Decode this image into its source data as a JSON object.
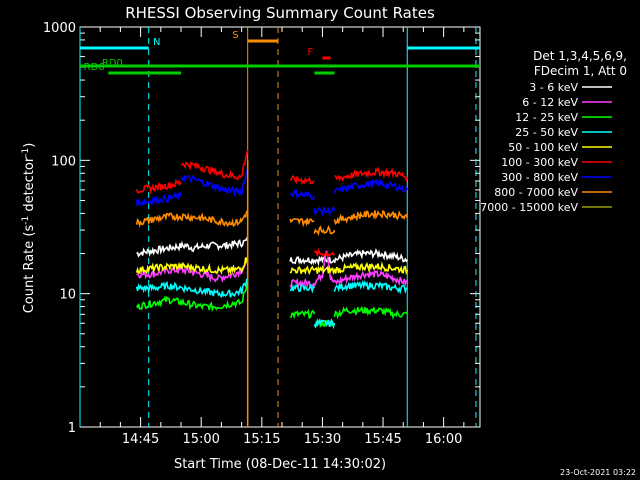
{
  "chart_data": {
    "type": "line",
    "title": "RHESSI Observing Summary Count Rates",
    "xlabel": "Start Time (08-Dec-11 14:30:02)",
    "ylabel": "Count Rate (s",
    "ylabel_sup": "-1",
    "ylabel_tail": " detector",
    "ylabel_end": ")",
    "yscale": "log",
    "ylim": [
      1,
      1000
    ],
    "xlim_minutes": [
      0,
      99
    ],
    "x_ticks": [
      {
        "label": "14:45",
        "min": 15
      },
      {
        "label": "15:00",
        "min": 30
      },
      {
        "label": "15:15",
        "min": 45
      },
      {
        "label": "15:30",
        "min": 60
      },
      {
        "label": "15:45",
        "min": 75
      },
      {
        "label": "16:00",
        "min": 90
      }
    ],
    "y_ticks": [
      {
        "label": "1",
        "value": 1
      },
      {
        "label": "10",
        "value": 10
      },
      {
        "label": "100",
        "value": 100
      },
      {
        "label": "1000",
        "value": 1000
      }
    ],
    "legend_header": [
      "Det 1,3,4,5,6,9,",
      "FDecim 1, Att 0"
    ],
    "series": [
      {
        "name": "3 - 6 keV",
        "color": "#ffffff",
        "segments": [
          {
            "x": [
              14,
              18,
              22,
              26,
              28,
              32,
              36,
              40,
              41.5
            ],
            "y": [
              20,
              21,
              22,
              23,
              22,
              23,
              23,
              24,
              25
            ]
          },
          {
            "x": [
              52,
              54,
              56,
              58
            ],
            "y": [
              18,
              18,
              18,
              18
            ]
          },
          {
            "x": [
              58,
              62,
              63
            ],
            "y": [
              18,
              18,
              18
            ]
          },
          {
            "x": [
              63,
              66,
              70,
              74,
              78,
              81
            ],
            "y": [
              18,
              19,
              20,
              20,
              19,
              18
            ]
          }
        ]
      },
      {
        "name": "6 - 12 keV",
        "color": "#ff3cff",
        "segments": [
          {
            "x": [
              14,
              18,
              22,
              26,
              30,
              34,
              38,
              40,
              41.5
            ],
            "y": [
              14,
              14,
              15,
              15,
              14,
              13,
              14,
              15,
              17
            ]
          },
          {
            "x": [
              52,
              56,
              58
            ],
            "y": [
              12,
              12,
              12
            ]
          },
          {
            "x": [
              58,
              60,
              61,
              62,
              63,
              66,
              70,
              74,
              78,
              81
            ],
            "y": [
              12,
              14,
              22,
              13,
              12,
              13,
              14,
              14,
              13,
              12
            ]
          }
        ]
      },
      {
        "name": "12 - 25 keV",
        "color": "#00ff00",
        "segments": [
          {
            "x": [
              14,
              18,
              22,
              26,
              30,
              34,
              38,
              40,
              41.5
            ],
            "y": [
              8,
              8.5,
              9,
              8.5,
              8,
              8,
              8.5,
              8.5,
              12
            ]
          },
          {
            "x": [
              52,
              56,
              58
            ],
            "y": [
              7,
              7,
              7
            ]
          },
          {
            "x": [
              58,
              61,
              63
            ],
            "y": [
              6,
              6,
              6
            ]
          },
          {
            "x": [
              63,
              66,
              70,
              74,
              78,
              81
            ],
            "y": [
              7,
              7.5,
              7.5,
              7.5,
              7,
              7
            ]
          }
        ]
      },
      {
        "name": "25 - 50 keV",
        "color": "#00ffff",
        "segments": [
          {
            "x": [
              14,
              18,
              22,
              26,
              30,
              34,
              38,
              40,
              41.5
            ],
            "y": [
              11,
              11,
              11.5,
              11,
              10.5,
              10,
              10,
              10.5,
              13
            ]
          },
          {
            "x": [
              52,
              56,
              58
            ],
            "y": [
              11,
              11,
              11
            ]
          },
          {
            "x": [
              58,
              61,
              63
            ],
            "y": [
              6,
              6,
              6
            ]
          },
          {
            "x": [
              63,
              66,
              70,
              74,
              78,
              81
            ],
            "y": [
              11,
              11.5,
              11.5,
              11.5,
              11,
              11
            ]
          }
        ]
      },
      {
        "name": "50 - 100 keV",
        "color": "#ffff00",
        "segments": [
          {
            "x": [
              14,
              18,
              22,
              26,
              30,
              34,
              38,
              40,
              41.5
            ],
            "y": [
              15,
              15.5,
              16,
              16,
              15.5,
              15,
              15,
              15.5,
              19
            ]
          },
          {
            "x": [
              52,
              56,
              58
            ],
            "y": [
              15,
              15,
              15
            ]
          },
          {
            "x": [
              58,
              61,
              63
            ],
            "y": [
              15,
              15,
              15
            ]
          },
          {
            "x": [
              63,
              66,
              70,
              74,
              78,
              81
            ],
            "y": [
              15,
              15.5,
              16,
              16,
              15.5,
              15
            ]
          }
        ]
      },
      {
        "name": "100 - 300 keV",
        "color": "#ff0000",
        "segments": [
          {
            "x": [
              14,
              18,
              22,
              25
            ],
            "y": [
              60,
              62,
              65,
              68
            ]
          },
          {
            "x": [
              25,
              28,
              32,
              36,
              40,
              41.5
            ],
            "y": [
              95,
              92,
              85,
              78,
              75,
              120
            ]
          },
          {
            "x": [
              52,
              56,
              58
            ],
            "y": [
              72,
              71,
              70
            ]
          },
          {
            "x": [
              58,
              61,
              63
            ],
            "y": [
              20,
              20,
              20
            ]
          },
          {
            "x": [
              63,
              66,
              70,
              74,
              78,
              81
            ],
            "y": [
              72,
              76,
              80,
              82,
              80,
              75
            ]
          }
        ]
      },
      {
        "name": "300 - 800 keV",
        "color": "#0000ff",
        "segments": [
          {
            "x": [
              14,
              18,
              22,
              25
            ],
            "y": [
              48,
              50,
              52,
              54
            ]
          },
          {
            "x": [
              25,
              28,
              32,
              36,
              40,
              41.5
            ],
            "y": [
              75,
              72,
              66,
              60,
              58,
              85
            ]
          },
          {
            "x": [
              52,
              56,
              58
            ],
            "y": [
              57,
              55,
              54
            ]
          },
          {
            "x": [
              58,
              61,
              63
            ],
            "y": [
              42,
              42,
              42
            ]
          },
          {
            "x": [
              63,
              66,
              70,
              74,
              78,
              81
            ],
            "y": [
              58,
              62,
              66,
              67,
              64,
              60
            ]
          }
        ]
      },
      {
        "name": "800 - 7000 keV",
        "color": "#ff8c00",
        "segments": [
          {
            "x": [
              14,
              18,
              22,
              26,
              30,
              34,
              38,
              40,
              41.5
            ],
            "y": [
              34,
              36,
              38,
              38,
              37,
              35,
              34,
              35,
              42
            ]
          },
          {
            "x": [
              52,
              56,
              58
            ],
            "y": [
              35,
              35,
              35
            ]
          },
          {
            "x": [
              58,
              61,
              63
            ],
            "y": [
              30,
              30,
              30
            ]
          },
          {
            "x": [
              63,
              66,
              70,
              74,
              78,
              81
            ],
            "y": [
              35,
              37,
              39,
              40,
              39,
              37
            ]
          }
        ]
      },
      {
        "name": "7000 - 15000 keV",
        "color": "#999900",
        "segments": []
      }
    ],
    "flags": [
      {
        "label": "N",
        "color": "#00ffff",
        "segments": [
          [
            0,
            17
          ],
          [
            81,
            99
          ]
        ]
      },
      {
        "label": "RD0",
        "color": "#00cc00",
        "segments": [
          [
            0,
            99
          ]
        ]
      },
      {
        "label": "RD6",
        "color": "#00cc00",
        "segments": [
          [
            7,
            25
          ],
          [
            58,
            63
          ]
        ]
      },
      {
        "label": "S",
        "color": "#ff8c00",
        "segments": [
          [
            41.5,
            49
          ]
        ]
      },
      {
        "label": "F",
        "color": "#ff0000",
        "segments": [
          [
            60,
            62
          ]
        ]
      }
    ],
    "vlines": [
      {
        "x": 0,
        "color": "#00ffff",
        "style": "solid"
      },
      {
        "x": 17,
        "color": "#00ffff",
        "style": "dashed"
      },
      {
        "x": 41.5,
        "color": "#ff8c00",
        "style": "solid"
      },
      {
        "x": 49,
        "color": "#ff8c00",
        "style": "dashed"
      },
      {
        "x": 81,
        "color": "#00ffff",
        "style": "solid"
      },
      {
        "x": 98,
        "color": "#00ffff",
        "style": "dashed"
      }
    ],
    "timestamp": "23-Oct-2021 03:22"
  }
}
